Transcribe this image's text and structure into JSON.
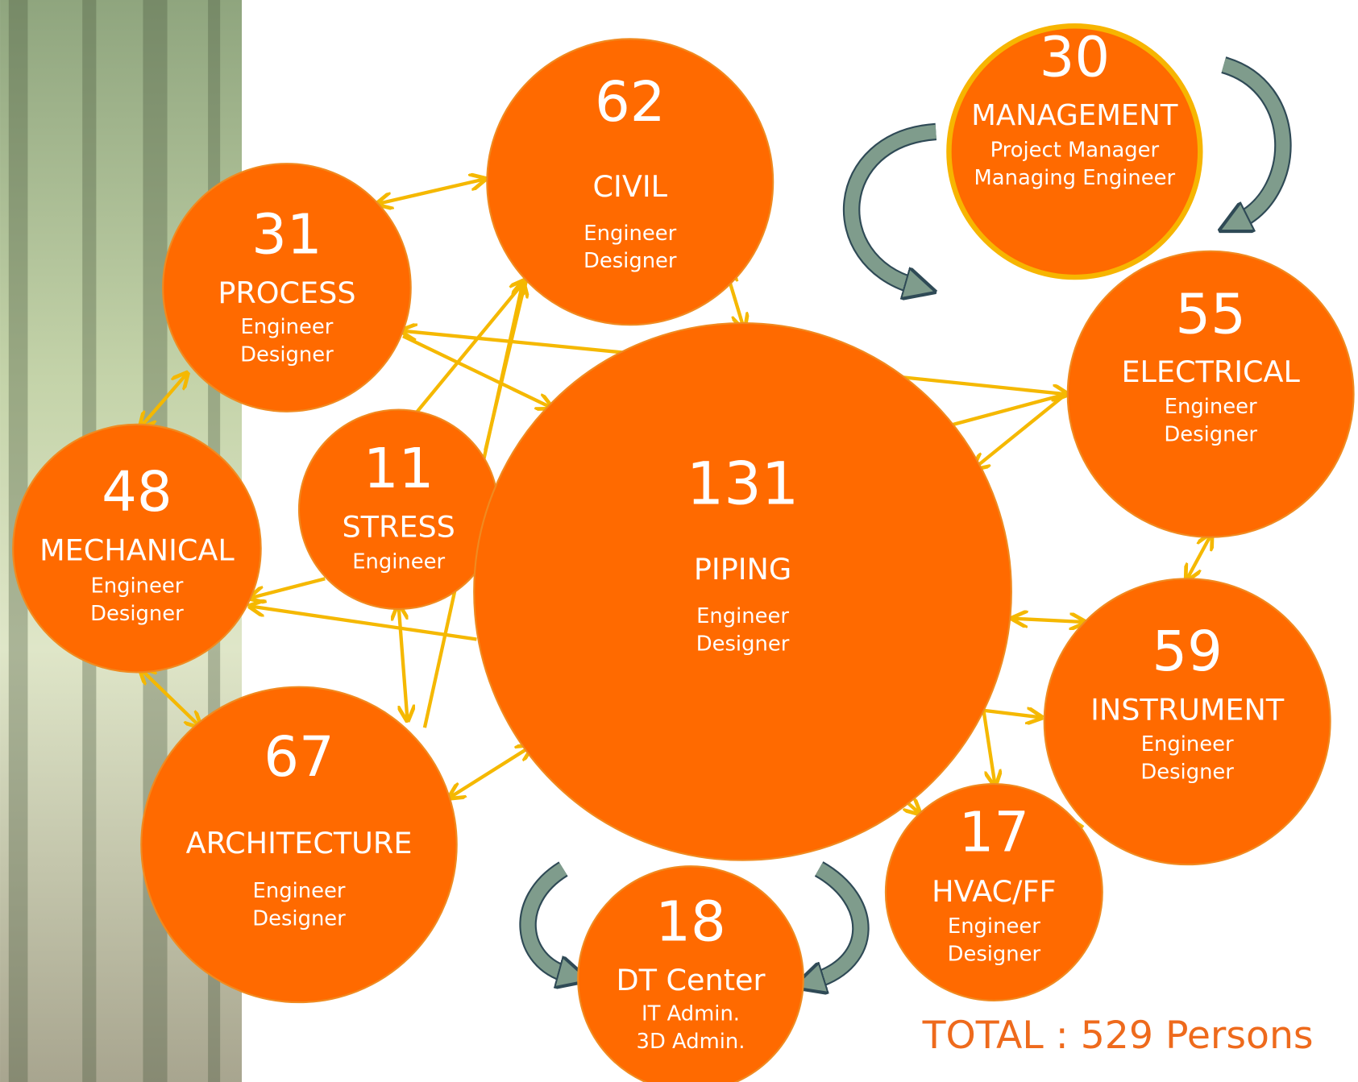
{
  "nodes": [
    {
      "count": 62,
      "name": "CIVIL",
      "roles": [
        "Engineer",
        "Designer"
      ]
    },
    {
      "count": 30,
      "name": "MANAGEMENT",
      "roles": [
        "Project Manager",
        "Managing Engineer"
      ]
    },
    {
      "count": 31,
      "name": "PROCESS",
      "roles": [
        "Engineer",
        "Designer"
      ]
    },
    {
      "count": 11,
      "name": "STRESS",
      "roles": [
        "Engineer"
      ]
    },
    {
      "count": 48,
      "name": "MECHANICAL",
      "roles": [
        "Engineer",
        "Designer"
      ]
    },
    {
      "count": 131,
      "name": "PIPING",
      "roles": [
        "Engineer",
        "Designer"
      ]
    },
    {
      "count": 55,
      "name": "ELECTRICAL",
      "roles": [
        "Engineer",
        "Designer"
      ]
    },
    {
      "count": 59,
      "name": "INSTRUMENT",
      "roles": [
        "Engineer",
        "Designer"
      ]
    },
    {
      "count": 17,
      "name": "HVAC/FF",
      "roles": [
        "Engineer",
        "Designer"
      ]
    },
    {
      "count": 67,
      "name": "ARCHITECTURE",
      "roles": [
        "Engineer",
        "Designer"
      ]
    },
    {
      "count": 18,
      "name": "DT Center",
      "roles": [
        "IT Admin.",
        "3D Admin."
      ]
    }
  ],
  "total": "TOTAL  : 529 Persons"
}
